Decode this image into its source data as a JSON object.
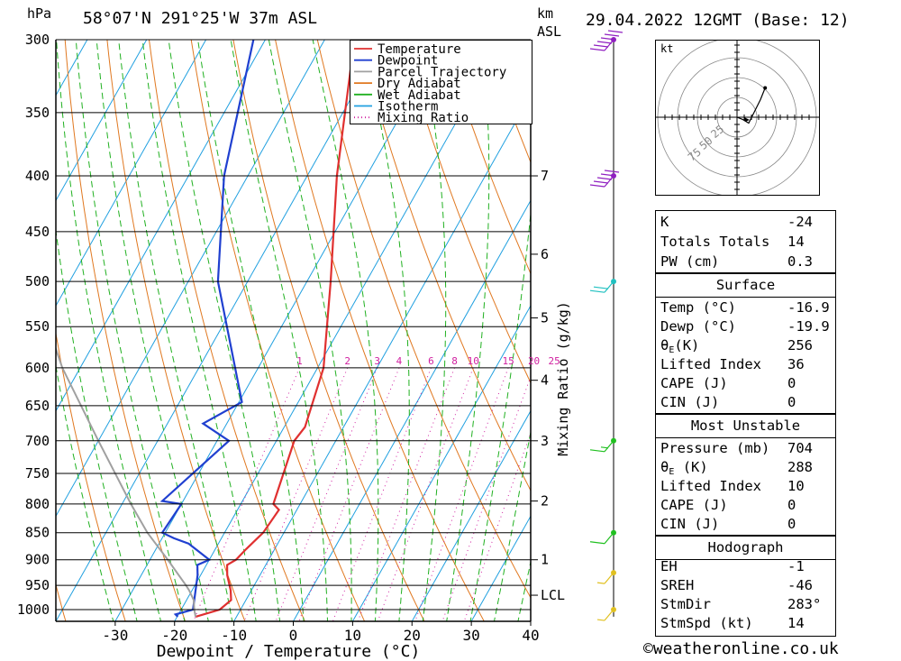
{
  "header": {
    "hpa_label": "hPa",
    "location": "58°07'N  291°25'W  37m  ASL",
    "km_label": "km",
    "asl_label": "ASL",
    "datetime": "29.04.2022  12GMT  (Base: 12)"
  },
  "legend": [
    {
      "label": "Temperature",
      "color": "#e03030",
      "style": "solid"
    },
    {
      "label": "Dewpoint",
      "color": "#2040d0",
      "style": "solid"
    },
    {
      "label": "Parcel Trajectory",
      "color": "#a0a0a0",
      "style": "solid"
    },
    {
      "label": "Dry Adiabat",
      "color": "#e07820",
      "style": "solid"
    },
    {
      "label": "Wet Adiabat",
      "color": "#20b020",
      "style": "solid"
    },
    {
      "label": "Isotherm",
      "color": "#20a0e0",
      "style": "solid"
    },
    {
      "label": "Mixing Ratio",
      "color": "#d020a0",
      "style": "dotted"
    }
  ],
  "chart_data": {
    "type": "line",
    "title": "58°07'N  291°25'W  37m  ASL",
    "xlabel": "Dewpoint / Temperature (°C)",
    "ylabel": "hPa",
    "x_ticks": [
      -30,
      -20,
      -10,
      0,
      10,
      20,
      30,
      40
    ],
    "x_tick_labels": [
      "-30",
      "-20",
      "-10",
      "0",
      "10",
      "20",
      "30",
      "40"
    ],
    "pressure_ticks": [
      300,
      350,
      400,
      450,
      500,
      550,
      600,
      650,
      700,
      750,
      800,
      850,
      900,
      950,
      1000
    ],
    "xlim": [
      -40,
      40
    ],
    "ylim": [
      1025,
      300
    ],
    "skew_deg_per_ln": 45,
    "height_axis": {
      "label": "km ASL",
      "ticks": [
        {
          "label": "7",
          "p": 400
        },
        {
          "label": "6",
          "p": 472
        },
        {
          "label": "5",
          "p": 540
        },
        {
          "label": "4",
          "p": 616
        },
        {
          "label": "3",
          "p": 700
        },
        {
          "label": "2",
          "p": 795
        },
        {
          "label": "1",
          "p": 900
        },
        {
          "label": "LCL",
          "p": 970
        }
      ]
    },
    "mixing_ratio_axis_label": "Mixing Ratio (g/kg)",
    "mixing_ratio_labels": [
      "1",
      "2",
      "3",
      "4",
      "6",
      "8",
      "10",
      "15",
      "20",
      "25"
    ],
    "mixing_ratio_values": [
      1,
      2,
      3,
      4,
      6,
      8,
      10,
      15,
      20,
      25
    ],
    "series": [
      {
        "name": "Temperature",
        "color": "#e03030",
        "p": [
          1015,
          1000,
          980,
          960,
          930,
          910,
          900,
          880,
          850,
          810,
          800,
          700,
          680,
          600,
          500,
          400,
          300
        ],
        "t": [
          -16.9,
          -13.5,
          -12.5,
          -13.5,
          -15.5,
          -16.5,
          -15.5,
          -14.8,
          -13.5,
          -13.0,
          -14.5,
          -17.0,
          -16.5,
          -19.0,
          -26.0,
          -35.0,
          -45.0
        ]
      },
      {
        "name": "Dewpoint",
        "color": "#2040d0",
        "p": [
          1015,
          1010,
          1000,
          930,
          910,
          900,
          870,
          860,
          850,
          800,
          795,
          700,
          675,
          645,
          500,
          400,
          300
        ],
        "t": [
          -19.9,
          -20.5,
          -18.0,
          -20.5,
          -21.5,
          -20.0,
          -25.0,
          -28.0,
          -30.5,
          -30.0,
          -33.5,
          -28.0,
          -34.0,
          -29.5,
          -45.0,
          -54.0,
          -62.0
        ]
      },
      {
        "name": "Parcel Trajectory",
        "color": "#a0a0a0",
        "p": [
          1015,
          1000,
          980,
          960,
          950,
          900,
          850,
          800,
          700,
          600,
          530
        ],
        "t": [
          -16.9,
          -17.8,
          -18.8,
          -20.5,
          -21.5,
          -27.0,
          -33.0,
          -38.5,
          -50.0,
          -63.0,
          -72.0
        ]
      }
    ]
  },
  "wind_barbs": [
    {
      "p": 300,
      "speed_kt": 60,
      "color": "#9020c0"
    },
    {
      "p": 400,
      "speed_kt": 50,
      "color": "#9020c0"
    },
    {
      "p": 500,
      "speed_kt": 20,
      "color": "#20c0c0"
    },
    {
      "p": 700,
      "speed_kt": 15,
      "color": "#20c020"
    },
    {
      "p": 850,
      "speed_kt": 10,
      "color": "#20c020"
    },
    {
      "p": 925,
      "speed_kt": 5,
      "color": "#e0c020"
    },
    {
      "p": 1000,
      "speed_kt": 5,
      "color": "#e0c020"
    }
  ],
  "hodograph": {
    "unit_label": "kt",
    "ring_labels": [
      "25",
      "50",
      "75"
    ],
    "trace_u": [
      0,
      5,
      10,
      15,
      20,
      24
    ],
    "trace_v": [
      0,
      -2,
      -5,
      5,
      15,
      25
    ]
  },
  "indices": {
    "k_label": "K",
    "k_value": "-24",
    "tt_label": "Totals Totals",
    "tt_value": "14",
    "pw_label": "PW (cm)",
    "pw_value": "0.3"
  },
  "surface": {
    "title": "Surface",
    "temp_label": "Temp (°C)",
    "temp_value": "-16.9",
    "dewp_label": "Dewp (°C)",
    "dewp_value": "-19.9",
    "theta_label_a": "θ",
    "theta_sub": "E",
    "theta_label_b": "(K)",
    "theta_value": "256",
    "li_label": "Lifted Index",
    "li_value": "36",
    "cape_label": "CAPE (J)",
    "cape_value": "0",
    "cin_label": "CIN (J)",
    "cin_value": "0"
  },
  "most_unstable": {
    "title": "Most Unstable",
    "pressure_label": "Pressure (mb)",
    "pressure_value": "704",
    "theta_label_a": "θ",
    "theta_sub": "E",
    "theta_label_b": " (K)",
    "theta_value": "288",
    "li_label": "Lifted Index",
    "li_value": "10",
    "cape_label": "CAPE (J)",
    "cape_value": "0",
    "cin_label": "CIN (J)",
    "cin_value": "0"
  },
  "hodo_table": {
    "title": "Hodograph",
    "eh_label": "EH",
    "eh_value": "-1",
    "sreh_label": "SREH",
    "sreh_value": "-46",
    "stmdir_label": "StmDir",
    "stmdir_value": "283°",
    "stmspd_label": "StmSpd (kt)",
    "stmspd_value": "14"
  },
  "footer": {
    "copyright": "©weatheronline.co.uk"
  }
}
